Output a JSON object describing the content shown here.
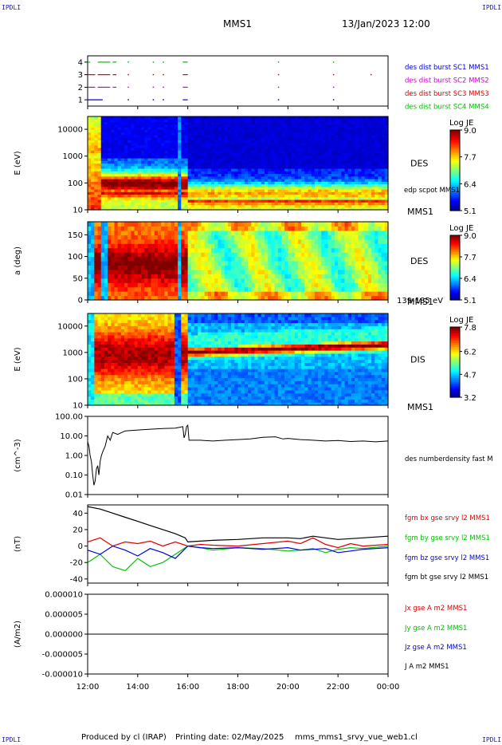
{
  "header": {
    "corner_text": "IPDLI",
    "spacecraft": "MMS1",
    "datetime": "13/Jan/2023 12:00"
  },
  "footer": {
    "produced_by": "Produced by cl (IRAP)",
    "printing_date": "Printing date: 02/May/2025",
    "filename": "mms_mms1_srvy_vue_web1.cl"
  },
  "colors": {
    "red": "#e00000",
    "green": "#00c000",
    "blue": "#0000e0",
    "black": "#000000",
    "magenta": "#d000d0",
    "corner": "#1a1aa0"
  },
  "chart_data": [
    {
      "type": "scatter",
      "id": "burst",
      "ylim": [
        0.5,
        4.5
      ],
      "yticks": [
        "1",
        "2",
        "3",
        "4"
      ],
      "series": [
        {
          "name": "des dist burst SC1 MMS1",
          "color": "#0000e0",
          "y": 1,
          "segments": [
            [
              12.0,
              12.6
            ],
            [
              15.8,
              16.0
            ]
          ],
          "dots": [
            13.6,
            14.6,
            15.0,
            19.6,
            21.8
          ]
        },
        {
          "name": "des dist burst SC2 MMS2",
          "color": "#d000d0",
          "y": 2,
          "segments": [
            [
              12.0,
              12.3
            ],
            [
              12.4,
              12.9
            ],
            [
              13.0,
              13.15
            ],
            [
              15.8,
              16.0
            ]
          ],
          "dots": [
            13.6,
            14.6,
            15.0,
            19.6,
            21.8
          ]
        },
        {
          "name": "des dist burst SC3 MMS3",
          "color": "#e00000",
          "y": 3,
          "segments": [
            [
              12.0,
              12.3
            ],
            [
              12.4,
              12.9
            ],
            [
              13.0,
              13.15
            ],
            [
              15.8,
              16.0
            ]
          ],
          "dots": [
            13.6,
            14.6,
            15.0,
            19.6,
            21.8,
            23.3
          ]
        },
        {
          "name": "des dist burst SC4 MMS4",
          "color": "#00c000",
          "y": 4,
          "segments": [
            [
              12.0,
              12.1
            ],
            [
              12.4,
              12.9
            ],
            [
              13.0,
              13.15
            ],
            [
              15.8,
              16.0
            ]
          ],
          "dots": [
            13.6,
            14.6,
            15.0,
            19.6,
            21.8
          ]
        }
      ]
    },
    {
      "type": "heatmap",
      "id": "des_energy",
      "ylabel": "E (eV)",
      "yscale": "log",
      "ylim": [
        10,
        30000
      ],
      "yticks": [
        "10",
        "100",
        "1000",
        "10000"
      ],
      "instrument": "DES",
      "sc_label": "MMS1",
      "overlay_label": "edp scpot MMS1",
      "colorbar": {
        "title": "Log JE",
        "ticks": [
          "9.0",
          "7.7",
          "6.4",
          "5.1"
        ],
        "min": 5.1,
        "max": 9.0
      }
    },
    {
      "type": "heatmap",
      "id": "des_pitch",
      "ylabel": "a (deg)",
      "ylim": [
        0,
        180
      ],
      "yticks": [
        "0",
        "50",
        "100",
        "150"
      ],
      "instrument": "DES",
      "sc_label": "MMS1",
      "energy_range": "139-185 eV",
      "colorbar": {
        "title": "Log JE",
        "ticks": [
          "9.0",
          "7.7",
          "6.4",
          "5.1"
        ],
        "min": 5.1,
        "max": 9.0
      }
    },
    {
      "type": "heatmap",
      "id": "dis_energy",
      "ylabel": "E (eV)",
      "yscale": "log",
      "ylim": [
        10,
        30000
      ],
      "yticks": [
        "10",
        "100",
        "1000",
        "10000"
      ],
      "instrument": "DIS",
      "sc_label": "MMS1",
      "colorbar": {
        "title": "Log JE",
        "ticks": [
          "7.8",
          "6.2",
          "4.7",
          "3.2"
        ],
        "min": 3.2,
        "max": 7.8
      }
    },
    {
      "type": "line",
      "id": "density",
      "ylabel": "(cm^-3)",
      "yscale": "log",
      "ylim": [
        0.01,
        100
      ],
      "yticks": [
        "0.01",
        "0.10",
        "1.00",
        "10.00",
        "100.00"
      ],
      "series": [
        {
          "name": "des numberdensity fast M",
          "color": "#000000",
          "x": [
            12.0,
            12.05,
            12.1,
            12.15,
            12.2,
            12.25,
            12.3,
            12.35,
            12.4,
            12.45,
            12.5,
            12.55,
            12.6,
            12.7,
            12.8,
            12.9,
            13.0,
            13.2,
            13.5,
            14.0,
            14.5,
            15.0,
            15.5,
            15.7,
            15.8,
            15.85,
            15.9,
            15.95,
            16.0,
            16.05,
            16.1,
            16.5,
            17.0,
            17.5,
            18.0,
            18.5,
            19.0,
            19.5,
            19.8,
            20.0,
            20.5,
            21.0,
            21.5,
            22.0,
            22.5,
            23.0,
            23.5,
            24.0
          ],
          "y": [
            5,
            3,
            1,
            0.5,
            0.1,
            0.03,
            0.05,
            0.2,
            0.3,
            0.1,
            0.5,
            1.0,
            1.5,
            3,
            10,
            6,
            15,
            12,
            18,
            20,
            22,
            24,
            25,
            28,
            30,
            8,
            12,
            30,
            35,
            6,
            6,
            6,
            5.5,
            6,
            6.5,
            7,
            8.5,
            9,
            7,
            7.5,
            6.5,
            6,
            5.5,
            5.8,
            5.2,
            5.5,
            5.0,
            5.5
          ]
        }
      ]
    },
    {
      "type": "line",
      "id": "fgm",
      "ylabel": "(nT)",
      "ylim": [
        -45,
        50
      ],
      "yticks": [
        "-40",
        "-20",
        "0",
        "20",
        "40"
      ],
      "series": [
        {
          "name": "fgm bx gse srvy l2 MMS1",
          "color": "#e00000",
          "x": [
            12.0,
            12.5,
            13.0,
            13.5,
            14.0,
            14.5,
            15.0,
            15.5,
            16.0,
            16.5,
            17.0,
            18.0,
            19.0,
            20.0,
            20.5,
            21.0,
            21.5,
            22.0,
            22.5,
            23.0,
            24.0
          ],
          "y": [
            5,
            10,
            0,
            5,
            3,
            6,
            0,
            5,
            0,
            2,
            1,
            0,
            3,
            6,
            3,
            10,
            2,
            -2,
            3,
            0,
            2
          ]
        },
        {
          "name": "fgm by gse srvy l2 MMS1",
          "color": "#00c000",
          "x": [
            12.0,
            12.5,
            13.0,
            13.5,
            14.0,
            14.5,
            15.0,
            15.5,
            16.0,
            16.5,
            17.0,
            18.0,
            19.0,
            20.0,
            20.5,
            21.0,
            21.5,
            22.0,
            22.5,
            23.0,
            24.0
          ],
          "y": [
            -20,
            -10,
            -25,
            -30,
            -15,
            -25,
            -20,
            -10,
            0,
            -2,
            -5,
            -2,
            -3,
            -6,
            -5,
            -3,
            -8,
            -4,
            -2,
            -3,
            0
          ]
        },
        {
          "name": "fgm bz gse srvy l2 MMS1",
          "color": "#0000e0",
          "x": [
            12.0,
            12.5,
            13.0,
            13.5,
            14.0,
            14.5,
            15.0,
            15.5,
            16.0,
            16.5,
            17.0,
            18.0,
            19.0,
            20.0,
            20.5,
            21.0,
            21.5,
            22.0,
            22.5,
            23.0,
            24.0
          ],
          "y": [
            -5,
            -10,
            0,
            -5,
            -12,
            -3,
            -8,
            -15,
            0,
            -2,
            -3,
            -2,
            -4,
            -2,
            -5,
            -4,
            -3,
            -8,
            -6,
            -4,
            -2
          ]
        },
        {
          "name": "fgm bt gse srvy l2 MMS1",
          "color": "#000000",
          "x": [
            12.0,
            12.5,
            13.0,
            13.5,
            14.0,
            14.5,
            15.0,
            15.5,
            15.9,
            16.0,
            16.5,
            17.0,
            18.0,
            19.0,
            20.0,
            20.5,
            21.0,
            21.5,
            22.0,
            22.5,
            23.0,
            24.0
          ],
          "y": [
            48,
            45,
            40,
            35,
            30,
            25,
            20,
            15,
            10,
            5,
            6,
            7,
            8,
            10,
            10,
            9,
            12,
            10,
            8,
            9,
            10,
            12
          ]
        }
      ]
    },
    {
      "type": "line",
      "id": "current",
      "ylabel": "(A/m2)",
      "ylim": [
        -1e-05,
        1e-05
      ],
      "yticks": [
        "-0.000010",
        "-0.000005",
        "0.000000",
        "0.000005",
        "0.000010"
      ],
      "xlim": [
        12,
        24
      ],
      "xticks": [
        "12:00",
        "14:00",
        "16:00",
        "18:00",
        "20:00",
        "22:00",
        "00:00"
      ],
      "series": [
        {
          "name": "Jx gse A m2 MMS1",
          "color": "#e00000"
        },
        {
          "name": "Jy gse A m2 MMS1",
          "color": "#00c000"
        },
        {
          "name": "Jz gse A m2 MMS1",
          "color": "#0000e0"
        },
        {
          "name": "J A m2 MMS1",
          "color": "#000000"
        }
      ]
    }
  ]
}
